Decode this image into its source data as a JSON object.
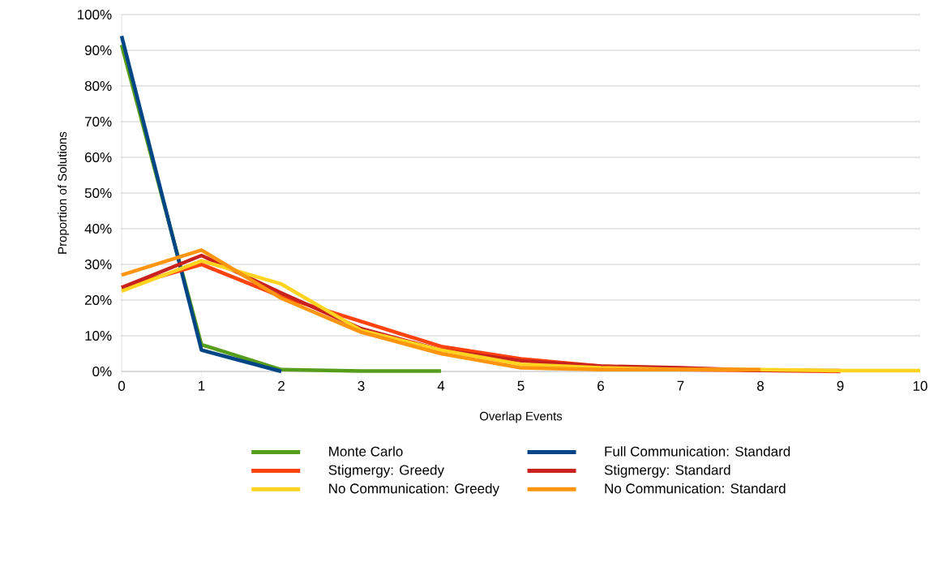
{
  "chart_data": {
    "type": "line",
    "xlabel": "Overlap Events",
    "ylabel": "Proportion of Solutions",
    "xlim": [
      0,
      10
    ],
    "xticks": [
      0,
      1,
      2,
      3,
      4,
      5,
      6,
      7,
      8,
      9,
      10
    ],
    "ylim": [
      0,
      100
    ],
    "yticks": [
      {
        "value": 0,
        "label": "0%"
      },
      {
        "value": 10,
        "label": "10%"
      },
      {
        "value": 20,
        "label": "20%"
      },
      {
        "value": 30,
        "label": "30%"
      },
      {
        "value": 40,
        "label": "40%"
      },
      {
        "value": 50,
        "label": "50%"
      },
      {
        "value": 60,
        "label": "60%"
      },
      {
        "value": 70,
        "label": "70%"
      },
      {
        "value": 80,
        "label": "80%"
      },
      {
        "value": 90,
        "label": "90%"
      },
      {
        "value": 100,
        "label": "100%"
      }
    ],
    "grid": "y",
    "legend": "bottom",
    "marker": "none",
    "line_style": "solid",
    "series": [
      {
        "name": "Monte Carlo",
        "color": "#579d1c",
        "x": [
          0,
          1,
          2,
          3,
          4
        ],
        "values": [
          91.5,
          7.5,
          0.5,
          0.1,
          0.1
        ]
      },
      {
        "name": "Full Communication: Standard",
        "color": "#004586",
        "x": [
          0,
          1,
          2
        ],
        "values": [
          94,
          6,
          0
        ]
      },
      {
        "name": "Stigmergy: Greedy",
        "color": "#ff420e",
        "x": [
          0,
          1,
          2,
          3,
          4,
          5,
          6,
          7,
          8,
          9
        ],
        "values": [
          23.5,
          30,
          21,
          14,
          7,
          3.5,
          1.5,
          0.5,
          0.3,
          0
        ]
      },
      {
        "name": "Stigmergy: Standard",
        "color": "#c9211e",
        "x": [
          0,
          1,
          2,
          3,
          4,
          5,
          6,
          7,
          8,
          9
        ],
        "values": [
          23.5,
          32.5,
          22,
          12,
          6,
          3,
          1.5,
          1,
          0.3,
          0.2
        ]
      },
      {
        "name": "No Communication: Greedy",
        "color": "#ffd320",
        "x": [
          0,
          1,
          2,
          3,
          4,
          5,
          6,
          7,
          8,
          9,
          10
        ],
        "values": [
          22.5,
          31,
          24.5,
          11.5,
          6,
          2,
          1,
          0.5,
          0.5,
          0.2,
          0.2
        ]
      },
      {
        "name": "No Communication: Standard",
        "color": "#ff950e",
        "x": [
          0,
          1,
          2,
          3,
          4,
          5,
          6,
          7,
          8
        ],
        "values": [
          27,
          34,
          20.5,
          11,
          5,
          1,
          0.5,
          0.5,
          0.5
        ]
      }
    ]
  }
}
